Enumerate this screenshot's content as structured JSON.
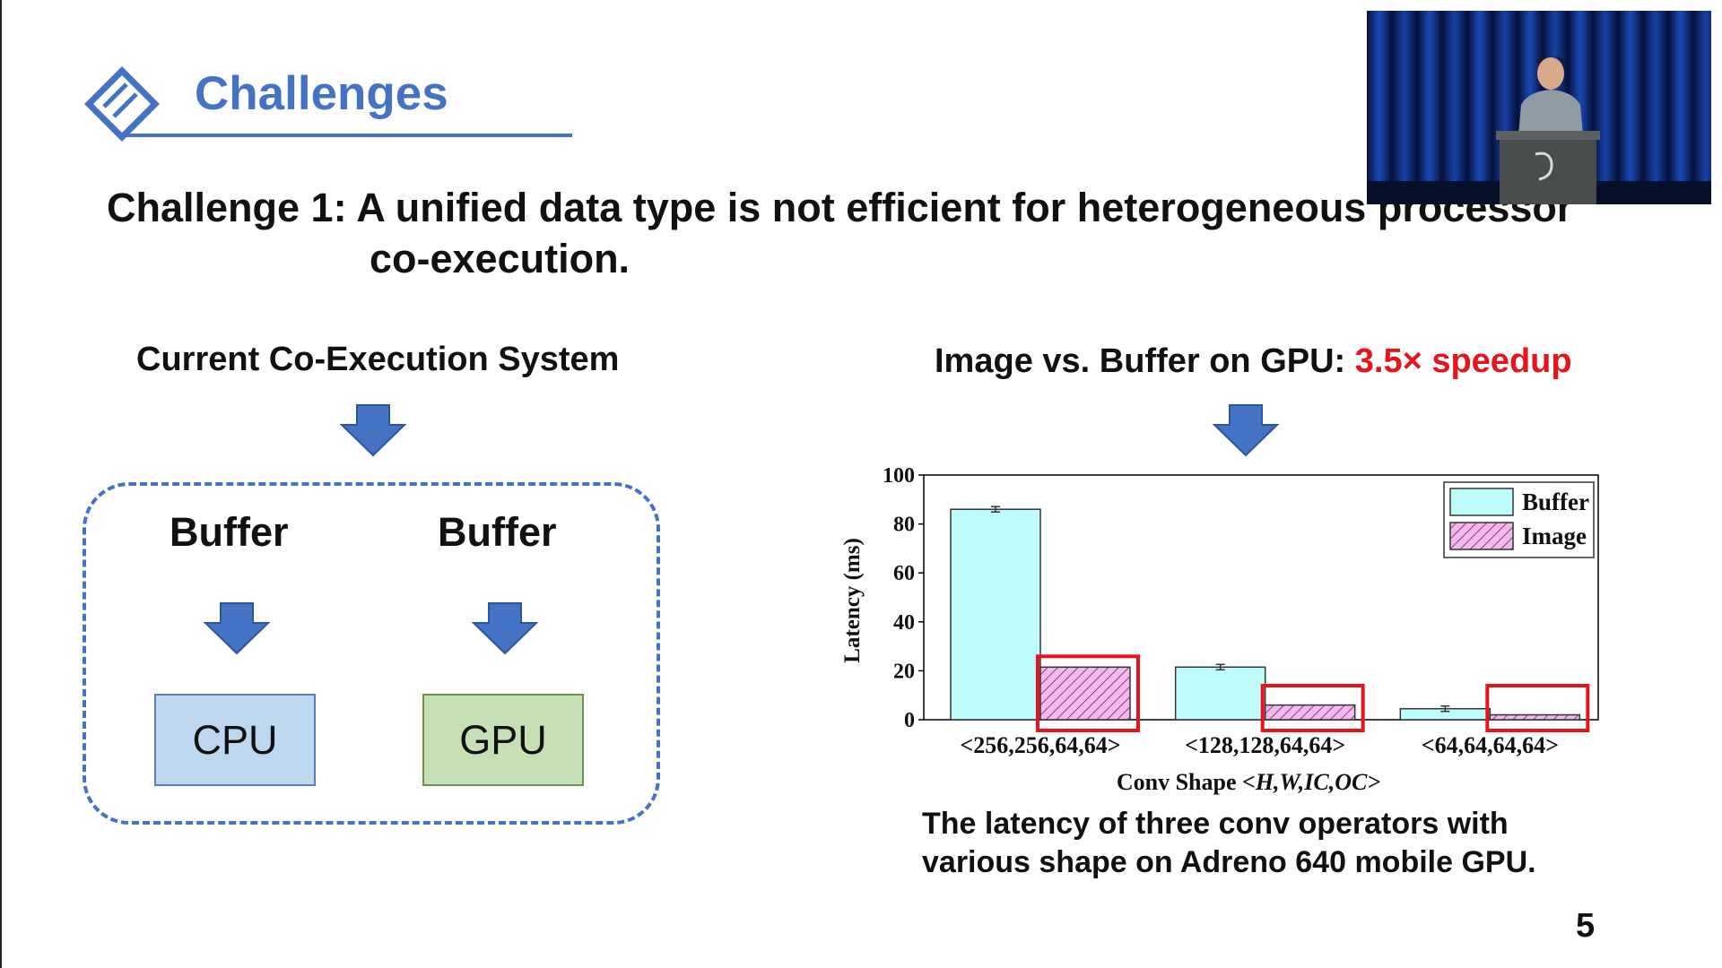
{
  "slide": {
    "title": "Challenges",
    "challenge": {
      "line1": "Challenge 1: A unified data type is not efficient for heterogeneous processor",
      "line2": "co-execution."
    },
    "left": {
      "heading": "Current Co-Execution System",
      "buffer_left": "Buffer",
      "buffer_right": "Buffer",
      "cpu_label": "CPU",
      "gpu_label": "GPU"
    },
    "right": {
      "heading_prefix": "Image vs. Buffer on GPU: ",
      "heading_highlight": "3.5× speedup",
      "caption_line1": "The latency of three conv operators with",
      "caption_line2": "various shape on Adreno 640 mobile GPU."
    },
    "page_number": "5"
  },
  "colors": {
    "title_blue": "#4472c4",
    "highlight_red": "#e8141d",
    "buffer_fill": "#bffdfd",
    "image_fill": "#f4b8ee",
    "cpu_fill": "#bdd7ee",
    "gpu_fill": "#c5e0b4"
  },
  "icons": {
    "logo": "diamond-logo-icon",
    "arrows": "down-arrow-icon"
  },
  "chart_data": {
    "type": "bar",
    "title": "",
    "xlabel_prefix": "Conv Shape ",
    "xlabel_italic": "<H,W,IC,OC>",
    "ylabel": "Latency (ms)",
    "ylim": [
      0,
      100
    ],
    "yticks": [
      "0",
      "20",
      "40",
      "60",
      "80",
      "100"
    ],
    "categories": [
      "<256,256,64,64>",
      "<128,128,64,64>",
      "<64,64,64,64>"
    ],
    "series": [
      {
        "name": "Buffer",
        "values": [
          86,
          21.5,
          4.5
        ],
        "color": "#bffdfd"
      },
      {
        "name": "Image",
        "values": [
          21.5,
          6,
          2
        ],
        "color": "#f4b8ee",
        "pattern": "hatch"
      }
    ],
    "highlighted_series": "Image",
    "legend": "top-right",
    "grid": false
  }
}
